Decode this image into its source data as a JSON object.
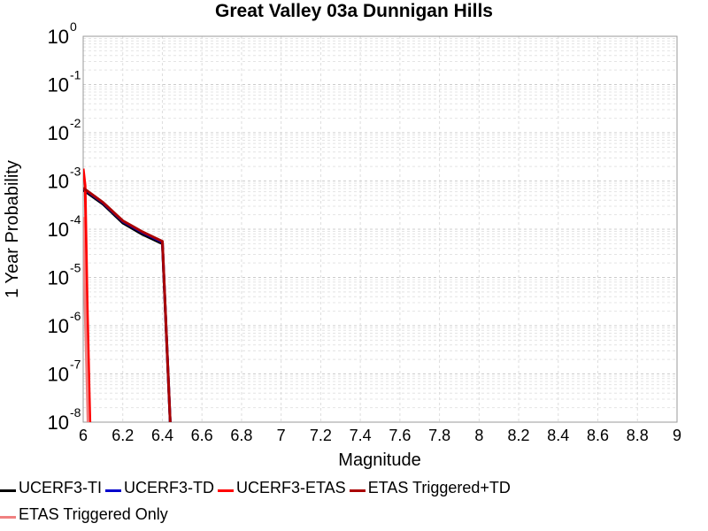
{
  "chart_data": {
    "type": "line",
    "title": "Great Valley 03a Dunnigan Hills",
    "xlabel": "Magnitude",
    "ylabel": "1 Year Probability",
    "xlim": [
      6,
      9
    ],
    "ylim": [
      1e-08,
      1
    ],
    "yscale": "log",
    "x_ticks": [
      "6",
      "6.2",
      "6.4",
      "6.6",
      "6.8",
      "7",
      "7.2",
      "7.4",
      "7.6",
      "7.8",
      "8",
      "8.2",
      "8.4",
      "8.6",
      "8.8",
      "9"
    ],
    "y_ticks": [
      {
        "base": "10",
        "exp": "-8",
        "value": 1e-08
      },
      {
        "base": "10",
        "exp": "-7",
        "value": 1e-07
      },
      {
        "base": "10",
        "exp": "-6",
        "value": 1e-06
      },
      {
        "base": "10",
        "exp": "-5",
        "value": 1e-05
      },
      {
        "base": "10",
        "exp": "-4",
        "value": 0.0001
      },
      {
        "base": "10",
        "exp": "-3",
        "value": 0.001
      },
      {
        "base": "10",
        "exp": "-2",
        "value": 0.01
      },
      {
        "base": "10",
        "exp": "-1",
        "value": 0.1
      },
      {
        "base": "10",
        "exp": "0",
        "value": 1
      }
    ],
    "grid": true,
    "legend_position": "bottom",
    "series": [
      {
        "name": "UCERF3-TI",
        "color": "#000000",
        "x": [
          6.0,
          6.1,
          6.2,
          6.3,
          6.4,
          6.45
        ],
        "y": [
          0.00065,
          0.00033,
          0.000135,
          7.8e-05,
          5e-05,
          1e-09
        ]
      },
      {
        "name": "UCERF3-TD",
        "color": "#0000cc",
        "x": [
          6.0,
          6.1,
          6.2,
          6.3,
          6.4,
          6.45
        ],
        "y": [
          0.0007,
          0.00035,
          0.000145,
          8.5e-05,
          5.4e-05,
          1e-09
        ]
      },
      {
        "name": "UCERF3-ETAS",
        "color": "#ff0000",
        "x": [
          6.0,
          6.01,
          6.02,
          6.03,
          6.04
        ],
        "y": [
          0.0018,
          0.0008,
          3e-06,
          5e-08,
          1e-09
        ]
      },
      {
        "name": "ETAS Triggered+TD",
        "color": "#aa0000",
        "x": [
          6.0,
          6.1,
          6.2,
          6.3,
          6.4,
          6.45
        ],
        "y": [
          0.00072,
          0.00036,
          0.00015,
          8.8e-05,
          5.6e-05,
          1e-09
        ]
      },
      {
        "name": "ETAS Triggered Only",
        "color": "#f08080",
        "x": [
          6.0,
          6.01,
          6.02,
          6.03
        ],
        "y": [
          0.00018,
          2e-06,
          5e-08,
          1e-09
        ]
      }
    ]
  }
}
